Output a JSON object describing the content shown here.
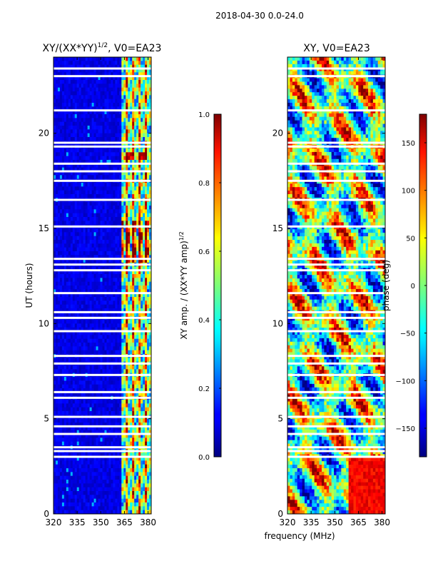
{
  "page_title": "2018-04-30 0.0-24.0",
  "chart_data": [
    {
      "type": "heatmap",
      "title": "XY/(XX*YY)",
      "title_sup": "1/2",
      "title_tail": ", V0=EA23",
      "xlabel": "",
      "ylabel": "UT (hours)",
      "xlim": [
        320,
        382
      ],
      "ylim": [
        0,
        24
      ],
      "xticks": [
        320,
        335,
        350,
        365,
        380
      ],
      "yticks": [
        0,
        5,
        10,
        15,
        20
      ],
      "gap_rows_hours": [
        3.0,
        3.3,
        3.5,
        4.2,
        4.6,
        5.1,
        6.1,
        6.4,
        7.3,
        7.9,
        8.3,
        9.6,
        10.3,
        10.6,
        11.6,
        12.8,
        13.1,
        13.4,
        15.1,
        16.5,
        17.5,
        18.0,
        18.4,
        19.3,
        19.5,
        21.2,
        23.0,
        23.4
      ],
      "bright_band_mhz": [
        362,
        382
      ],
      "colorbar": {
        "label": "XY amp. / (XX*YY amp)",
        "label_sup": "1/2",
        "range": [
          0.0,
          1.0
        ],
        "ticks": [
          "0.0",
          "0.2",
          "0.4",
          "0.6",
          "0.8",
          "1.0"
        ]
      }
    },
    {
      "type": "heatmap",
      "title": "XY, V0=EA23",
      "xlabel": "frequency (MHz)",
      "ylabel": "",
      "xlim": [
        320,
        382
      ],
      "ylim": [
        0,
        24
      ],
      "xticks": [
        320,
        335,
        350,
        365,
        380
      ],
      "yticks": [
        0,
        5,
        10,
        15,
        20
      ],
      "gap_rows_hours": [
        3.0,
        3.3,
        3.5,
        4.2,
        4.6,
        5.1,
        6.1,
        6.4,
        7.3,
        7.9,
        8.3,
        9.6,
        10.3,
        10.6,
        11.6,
        12.8,
        13.1,
        13.4,
        15.1,
        16.5,
        17.5,
        18.0,
        18.4,
        19.3,
        19.5,
        21.2,
        23.0,
        23.4
      ],
      "colorbar": {
        "label": "phase (deg)",
        "range": [
          -180,
          180
        ],
        "ticks": [
          "−150",
          "−100",
          "−50",
          "0",
          "50",
          "100",
          "150"
        ]
      }
    }
  ]
}
